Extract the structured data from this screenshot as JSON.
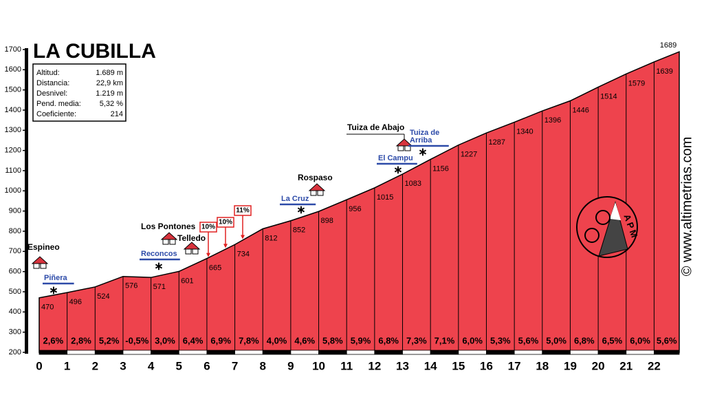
{
  "chart_data": {
    "type": "area",
    "title": "LA CUBILLA",
    "info": [
      [
        "Altitud:",
        "1.689 m"
      ],
      [
        "Distancia:",
        "22,9 km"
      ],
      [
        "Desnivel:",
        "1.219 m"
      ],
      [
        "Pend. media:",
        "5,32 %"
      ],
      [
        "Coeficiente:",
        "214"
      ]
    ],
    "x": [
      0,
      1,
      2,
      3,
      4,
      5,
      6,
      7,
      8,
      9,
      10,
      11,
      12,
      13,
      14,
      15,
      16,
      17,
      18,
      19,
      20,
      21,
      22,
      22.9
    ],
    "series": [
      {
        "color": "#ee434d",
        "values": [
          470,
          496,
          524,
          576,
          571,
          601,
          665,
          734,
          812,
          852,
          898,
          956,
          1015,
          1083,
          1156,
          1227,
          1287,
          1340,
          1396,
          1446,
          1514,
          1579,
          1639,
          1689
        ]
      }
    ],
    "gradients": {
      "values": [
        2.6,
        2.8,
        5.2,
        -0.5,
        3.0,
        6.4,
        6.9,
        7.8,
        4.0,
        4.6,
        5.8,
        5.9,
        6.8,
        7.3,
        7.1,
        6.0,
        5.3,
        5.6,
        5.0,
        6.8,
        6.5,
        6.0,
        5.6
      ],
      "value_labels": [
        "2,6%",
        "2,8%",
        "5,2%",
        "-0,5%",
        "3,0%",
        "6,4%",
        "6,9%",
        "7,8%",
        "4,0%",
        "4,6%",
        "5,8%",
        "5,9%",
        "6,8%",
        "7,3%",
        "7,1%",
        "6,0%",
        "5,3%",
        "5,6%",
        "5,0%",
        "6,8%",
        "6,5%",
        "6,0%",
        "5,6%"
      ]
    },
    "xlim": [
      0,
      22.9
    ],
    "xticks": [
      0,
      1,
      2,
      3,
      4,
      5,
      6,
      7,
      8,
      9,
      10,
      11,
      12,
      13,
      14,
      15,
      16,
      17,
      18,
      19,
      20,
      21,
      22
    ],
    "ylim": [
      200,
      1700
    ],
    "yticks": [
      200,
      300,
      400,
      500,
      600,
      700,
      800,
      900,
      1000,
      1100,
      1200,
      1300,
      1400,
      1500,
      1600,
      1700
    ],
    "places": [
      "Espineo",
      "Los Pontones",
      "Telledo",
      "Rospaso",
      "Tuiza de Abajo"
    ],
    "passes": [
      [
        "Piñera"
      ],
      [
        "Reconcos"
      ],
      [
        "La Cruz"
      ],
      [
        "El Campu"
      ],
      [
        "Tuiza de",
        "Arriba"
      ]
    ],
    "grade_marks": [
      "10%",
      "10%",
      "11%"
    ],
    "logo": "APM",
    "watermark": "© www.altimetrias.com"
  }
}
